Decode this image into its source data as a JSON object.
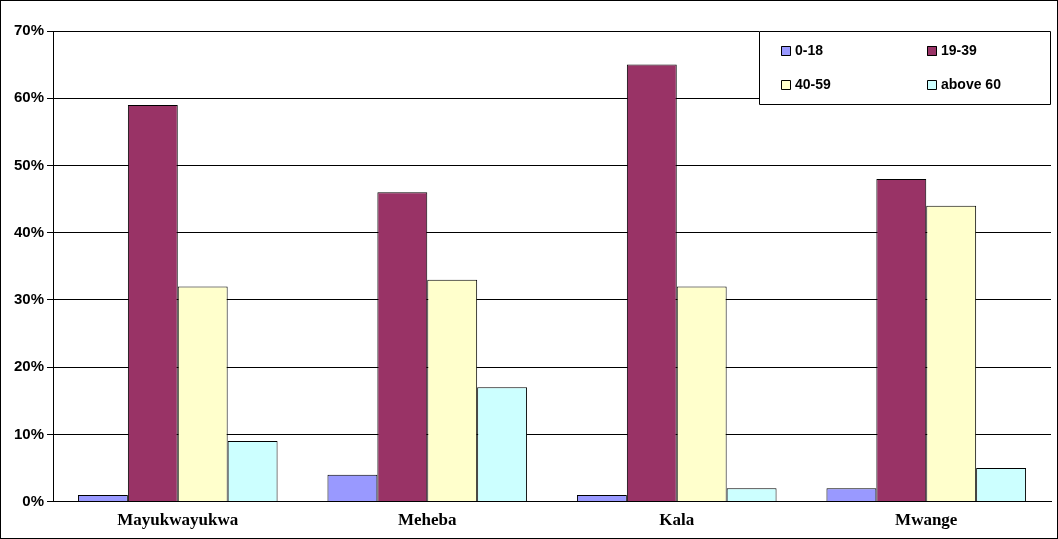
{
  "chart_data": {
    "type": "bar",
    "categories": [
      "Mayukwayukwa",
      "Meheba",
      "Kala",
      "Mwange"
    ],
    "series": [
      {
        "name": "0-18",
        "color": "#9999ff",
        "values": [
          1,
          4,
          1,
          2
        ]
      },
      {
        "name": "19-39",
        "color": "#993366",
        "values": [
          59,
          46,
          65,
          48
        ]
      },
      {
        "name": "40-59",
        "color": "#ffffcc",
        "values": [
          32,
          33,
          32,
          44
        ]
      },
      {
        "name": "above 60",
        "color": "#ccffff",
        "values": [
          9,
          17,
          2,
          5
        ]
      }
    ],
    "ylim": [
      0,
      70
    ],
    "yticks": [
      {
        "value": 0,
        "label": "0%"
      },
      {
        "value": 10,
        "label": "10%"
      },
      {
        "value": 20,
        "label": "20%"
      },
      {
        "value": 30,
        "label": "30%"
      },
      {
        "value": 40,
        "label": "40%"
      },
      {
        "value": 50,
        "label": "50%"
      },
      {
        "value": 60,
        "label": "60%"
      },
      {
        "value": 70,
        "label": "70%"
      }
    ],
    "grid": "y",
    "legend": "top right"
  }
}
